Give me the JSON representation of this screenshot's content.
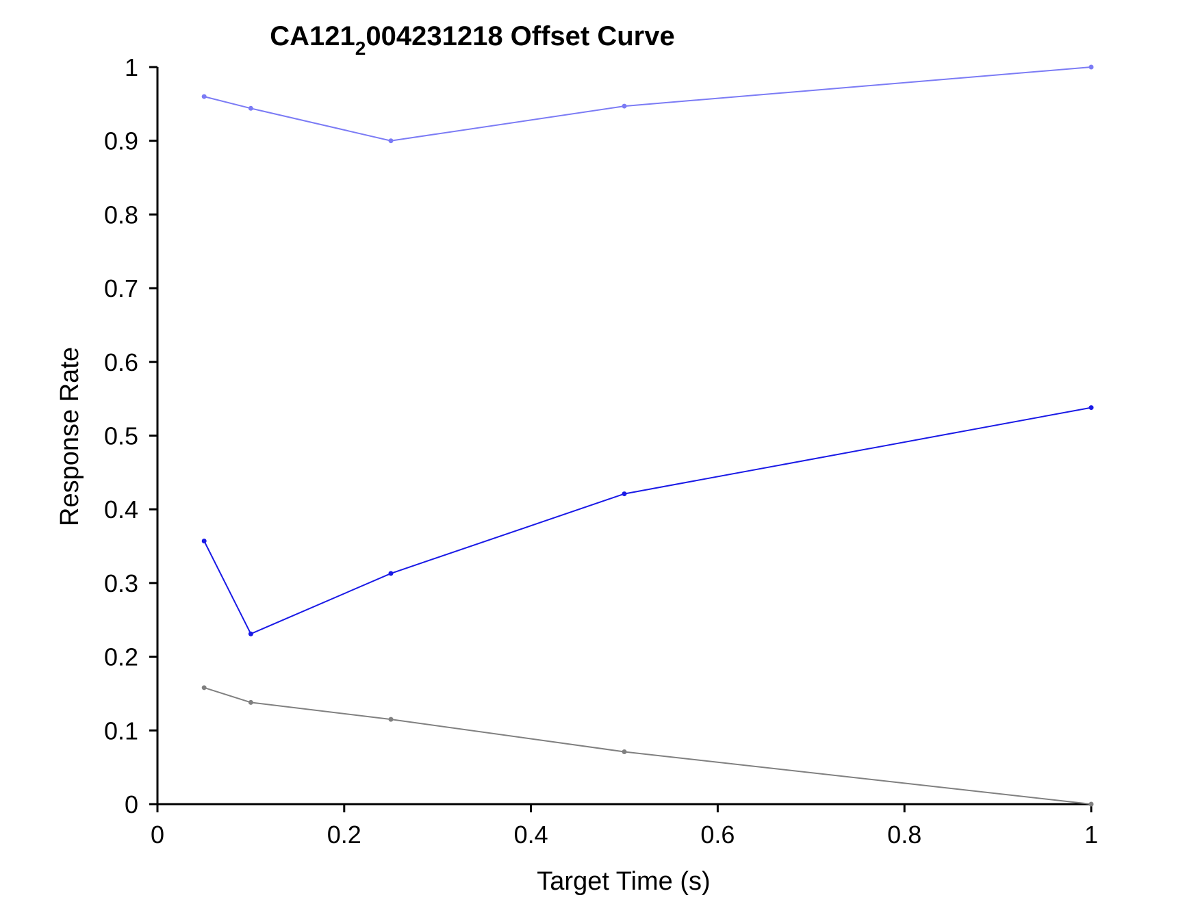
{
  "chart_data": {
    "type": "line",
    "title": {
      "main": "CA121",
      "subscript": "2",
      "rest": "004231218 Offset Curve"
    },
    "xlabel": "Target Time (s)",
    "ylabel": "Response Rate",
    "xlim": [
      0,
      1
    ],
    "ylim": [
      0,
      1
    ],
    "x_ticks": [
      0,
      0.2,
      0.4,
      0.6,
      0.8,
      1
    ],
    "x_tick_labels": [
      "0",
      "0.2",
      "0.4",
      "0.6",
      "0.8",
      "1"
    ],
    "y_ticks": [
      0,
      0.1,
      0.2,
      0.3,
      0.4,
      0.5,
      0.6,
      0.7,
      0.8,
      0.9,
      1
    ],
    "y_tick_labels": [
      "0",
      "0.1",
      "0.2",
      "0.3",
      "0.4",
      "0.5",
      "0.6",
      "0.7",
      "0.8",
      "0.9",
      "1"
    ],
    "grid": false,
    "x": [
      0.05,
      0.1,
      0.25,
      0.5,
      1
    ],
    "series": [
      {
        "color": "#7b7bf5",
        "values": [
          0.96,
          0.944,
          0.9,
          0.947,
          1.0
        ]
      },
      {
        "color": "#1a1ae6",
        "values": [
          0.357,
          0.231,
          0.313,
          0.421,
          0.538
        ]
      },
      {
        "color": "#808080",
        "values": [
          0.158,
          0.138,
          0.115,
          0.071,
          0.0
        ]
      }
    ]
  }
}
